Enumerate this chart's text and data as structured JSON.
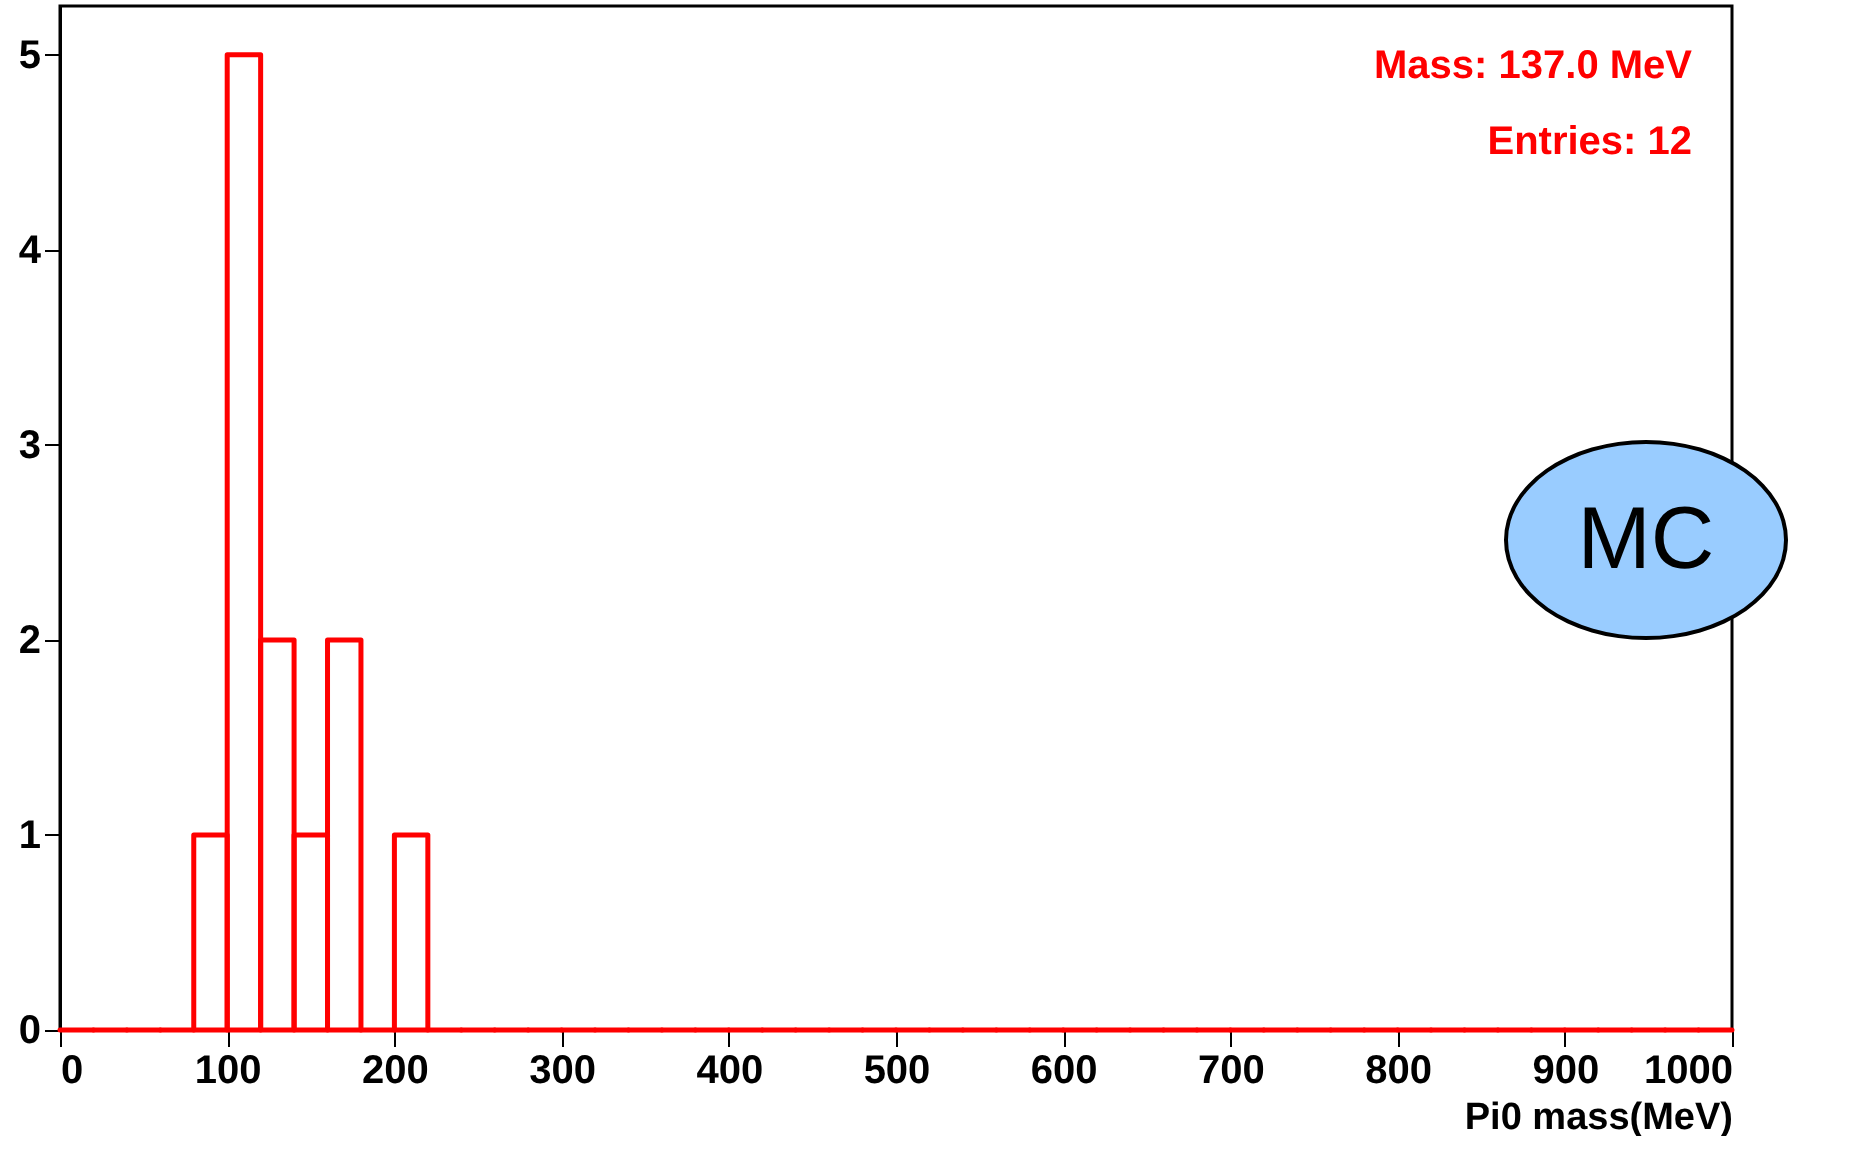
{
  "chart_data": {
    "type": "histogram",
    "xlabel": "Pi0 mass(MeV)",
    "bins": [
      0,
      20,
      40,
      60,
      80,
      100,
      120,
      140,
      160,
      180,
      200,
      220,
      240,
      260,
      280,
      300,
      320,
      340,
      360,
      380,
      400,
      420,
      440,
      460,
      480,
      500,
      520,
      540,
      560,
      580,
      600,
      620,
      640,
      660,
      680,
      700,
      720,
      740,
      760,
      780,
      800,
      820,
      840,
      860,
      880,
      900,
      920,
      940,
      960,
      980,
      1000
    ],
    "values": [
      0,
      0,
      0,
      0,
      1,
      5,
      2,
      1,
      2,
      0,
      1,
      0,
      0,
      0,
      0,
      0,
      0,
      0,
      0,
      0,
      0,
      0,
      0,
      0,
      0,
      0,
      0,
      0,
      0,
      0,
      0,
      0,
      0,
      0,
      0,
      0,
      0,
      0,
      0,
      0,
      0,
      0,
      0,
      0,
      0,
      0,
      0,
      0,
      0,
      0
    ],
    "color": "#ff0000",
    "xlim": [
      0,
      1000
    ],
    "ylim": [
      0,
      5.25
    ],
    "xticks": [
      0,
      100,
      200,
      300,
      400,
      500,
      600,
      700,
      800,
      900,
      1000
    ],
    "yticks": [
      0,
      1,
      2,
      3,
      4,
      5
    ],
    "annotations": [
      "Mass: 137.0 MeV",
      "Entries: 12",
      "MC"
    ]
  }
}
